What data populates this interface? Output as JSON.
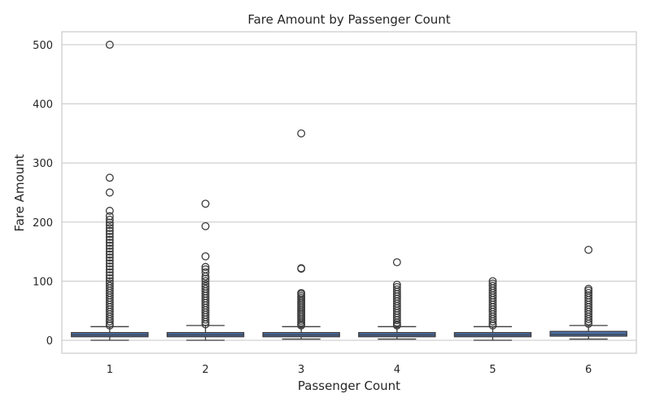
{
  "chart_data": {
    "type": "box",
    "title": "Fare Amount by Passenger Count",
    "xlabel": "Passenger Count",
    "ylabel": "Fare Amount",
    "ylim": [
      -22,
      522
    ],
    "yticks": [
      0,
      100,
      200,
      300,
      400,
      500
    ],
    "grid": true,
    "box_color": "#4c72b0",
    "categories": [
      "1",
      "2",
      "3",
      "4",
      "5",
      "6"
    ],
    "series": [
      {
        "category": "1",
        "whisker_low": 0,
        "q1": 6,
        "median": 9,
        "q3": 13,
        "whisker_high": 23,
        "outliers": [
          500,
          275,
          250,
          219,
          210,
          204,
          199,
          195,
          190,
          185,
          180,
          175,
          170,
          165,
          160,
          155,
          150,
          145,
          140,
          135,
          130,
          125,
          120,
          115,
          110,
          105,
          100,
          96,
          92,
          88,
          84,
          80,
          76,
          72,
          68,
          64,
          60,
          56,
          52,
          48,
          44,
          40,
          36,
          32,
          28,
          25
        ]
      },
      {
        "category": "2",
        "whisker_low": 0,
        "q1": 6,
        "median": 9,
        "q3": 13,
        "whisker_high": 25,
        "outliers": [
          231,
          193,
          142,
          124,
          120,
          115,
          108,
          104,
          100,
          95,
          91,
          87,
          83,
          79,
          75,
          71,
          67,
          63,
          59,
          55,
          51,
          47,
          43,
          39,
          35,
          31,
          27
        ]
      },
      {
        "category": "3",
        "whisker_low": 2,
        "q1": 6,
        "median": 9,
        "q3": 13,
        "whisker_high": 23,
        "outliers": [
          350,
          122,
          121,
          80,
          78,
          75,
          72,
          69,
          66,
          63,
          60,
          57,
          54,
          51,
          48,
          45,
          42,
          39,
          36,
          33,
          30,
          27,
          25
        ]
      },
      {
        "category": "4",
        "whisker_low": 2,
        "q1": 6,
        "median": 9,
        "q3": 13,
        "whisker_high": 23,
        "outliers": [
          132,
          94,
          90,
          86,
          82,
          78,
          74,
          70,
          66,
          62,
          58,
          54,
          50,
          46,
          42,
          38,
          34,
          30,
          27,
          25
        ]
      },
      {
        "category": "5",
        "whisker_low": 0,
        "q1": 6,
        "median": 9,
        "q3": 13,
        "whisker_high": 23,
        "outliers": [
          100,
          96,
          92,
          88,
          84,
          80,
          76,
          72,
          68,
          64,
          60,
          56,
          52,
          48,
          44,
          40,
          36,
          32,
          28,
          25
        ]
      },
      {
        "category": "6",
        "whisker_low": 2,
        "q1": 7,
        "median": 10,
        "q3": 15,
        "whisker_high": 25,
        "outliers": [
          153,
          87,
          84,
          80,
          76,
          72,
          68,
          64,
          60,
          56,
          52,
          48,
          44,
          40,
          36,
          32,
          28
        ]
      }
    ]
  }
}
